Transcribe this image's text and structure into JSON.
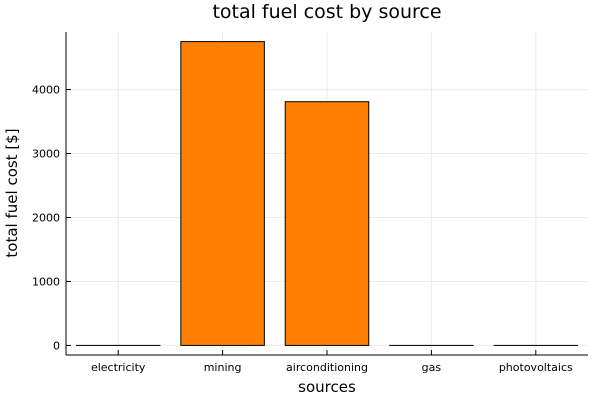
{
  "chart_data": {
    "type": "bar",
    "title": "total fuel cost by source",
    "xlabel": "sources",
    "ylabel": "total fuel cost [$]",
    "categories": [
      "electricity",
      "mining",
      "airconditioning",
      "gas",
      "photovoltaics"
    ],
    "values": [
      0,
      4750,
      3810,
      0,
      0
    ],
    "yticks": [
      0,
      1000,
      2000,
      3000,
      4000
    ],
    "ytick_labels": [
      "0",
      "1000",
      "2000",
      "3000",
      "4000"
    ],
    "ylim": [
      -150,
      4900
    ],
    "grid": true,
    "bar_color": "#ff8000"
  }
}
